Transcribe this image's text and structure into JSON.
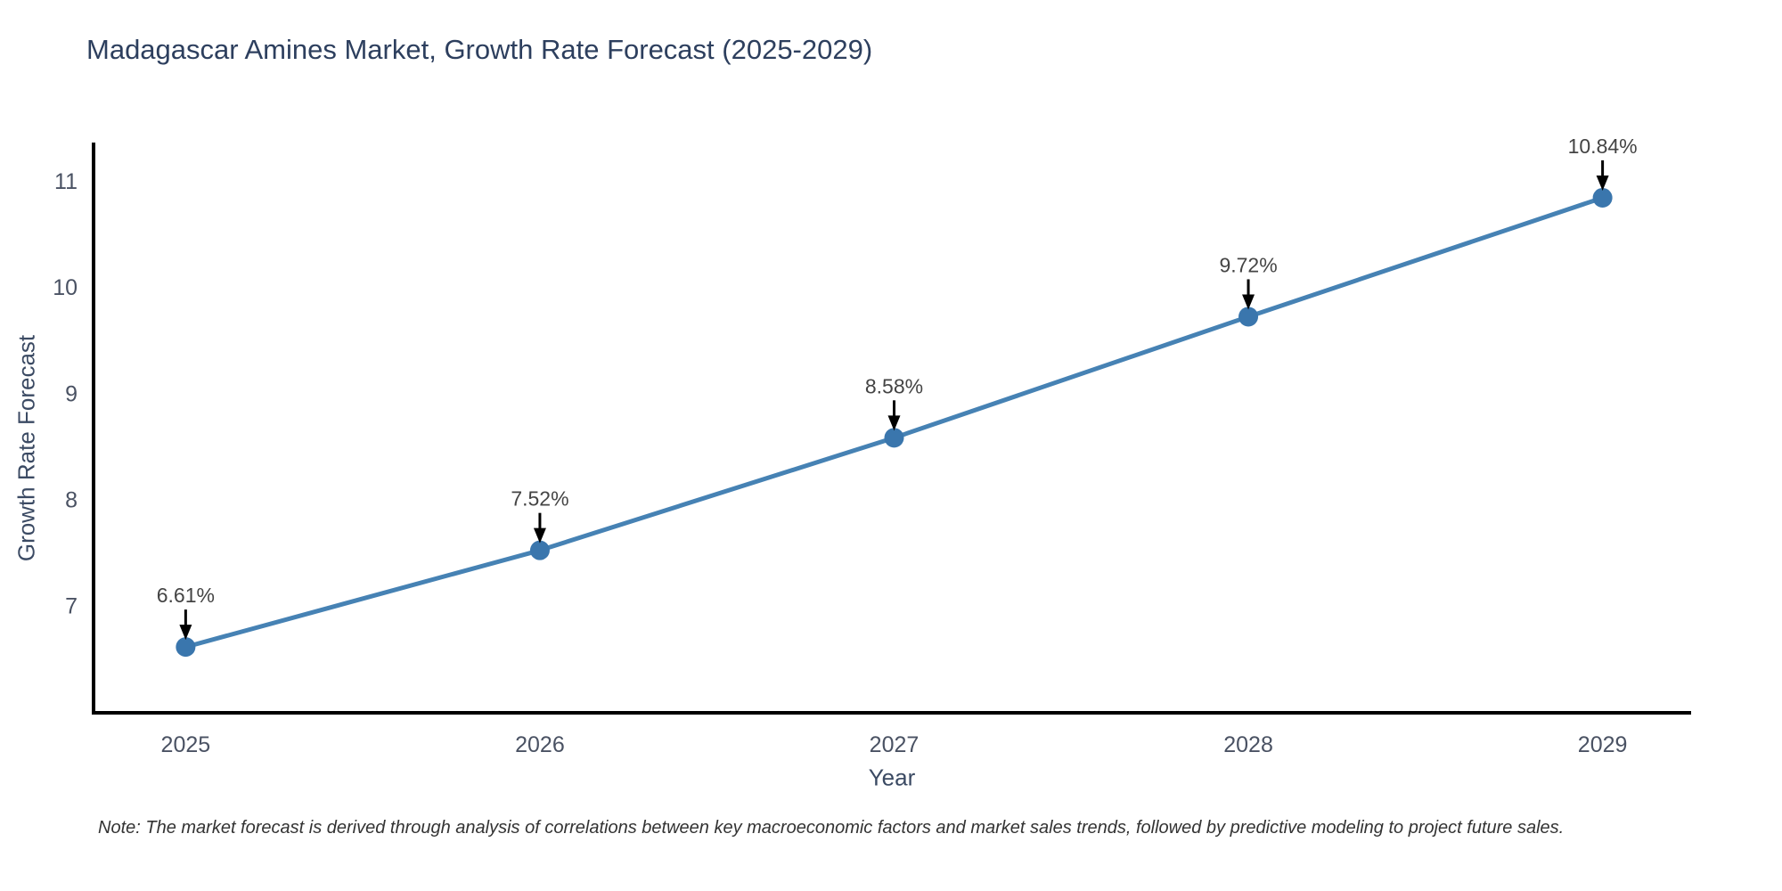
{
  "chart_data": {
    "type": "line",
    "title": "Madagascar Amines Market, Growth Rate Forecast (2025-2029)",
    "xlabel": "Year",
    "ylabel": "Growth Rate Forecast",
    "x": [
      2025,
      2026,
      2027,
      2028,
      2029
    ],
    "series": [
      {
        "name": "Growth Rate Forecast",
        "values": [
          6.61,
          7.52,
          8.58,
          9.72,
          10.84
        ]
      }
    ],
    "point_labels": [
      "6.61%",
      "7.52%",
      "8.58%",
      "9.72%",
      "10.84%"
    ],
    "yticks": [
      7,
      8,
      9,
      10,
      11
    ],
    "xticks": [
      2025,
      2026,
      2027,
      2028,
      2029
    ],
    "xlim": [
      2024.74,
      2029.25
    ],
    "ylim": [
      5.99,
      11.36
    ],
    "grid": false,
    "legend": "none",
    "colors": {
      "line": "#4682b4",
      "marker": "#3a76ad",
      "annotation_arrow": "#000000",
      "annotation_text": "#444444",
      "axis_line": "#000000",
      "tick_label": "#4a5263",
      "title": "#2d3f5e",
      "axis_title": "#3b4a63"
    }
  },
  "note": {
    "text": "Note: The market forecast is derived through analysis of correlations between key macroeconomic factors and market sales trends, followed by predictive modeling to project future sales."
  }
}
